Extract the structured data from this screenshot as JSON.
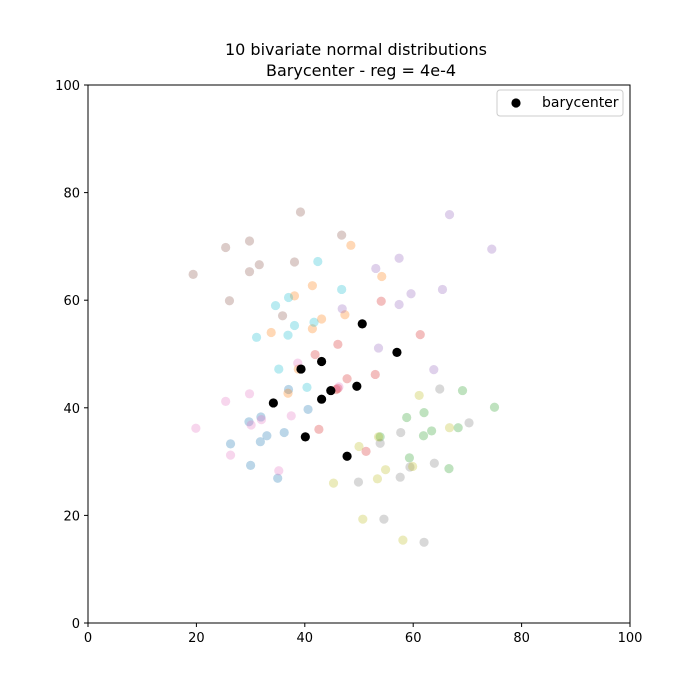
{
  "chart_data": {
    "type": "scatter",
    "title_lines": [
      "10 bivariate normal distributions",
      "Barycenter - reg = 4e-4"
    ],
    "xlabel": "",
    "ylabel": "",
    "xlim": [
      0,
      100
    ],
    "ylim": [
      0,
      100
    ],
    "xticks": [
      0,
      20,
      40,
      60,
      80,
      100
    ],
    "yticks": [
      0,
      20,
      40,
      60,
      80,
      100
    ],
    "grid": false,
    "legend": {
      "position": "top-right",
      "entries": [
        "barycenter"
      ]
    },
    "series": [
      {
        "color": "#1f77b4",
        "points": [
          [
            26.3,
            33.3
          ],
          [
            30.0,
            29.3
          ],
          [
            33.0,
            34.8
          ],
          [
            35.0,
            26.9
          ],
          [
            36.2,
            35.4
          ],
          [
            29.7,
            37.4
          ],
          [
            31.9,
            38.3
          ],
          [
            31.8,
            33.7
          ],
          [
            37.0,
            43.4
          ],
          [
            40.6,
            39.7
          ]
        ]
      },
      {
        "color": "#ff7f0e",
        "points": [
          [
            33.8,
            54.0
          ],
          [
            38.1,
            60.8
          ],
          [
            41.4,
            62.7
          ],
          [
            41.4,
            54.7
          ],
          [
            43.1,
            56.5
          ],
          [
            47.4,
            57.3
          ],
          [
            48.5,
            70.2
          ],
          [
            54.2,
            64.4
          ],
          [
            38.8,
            47.2
          ],
          [
            36.9,
            42.7
          ]
        ]
      },
      {
        "color": "#2ca02c",
        "points": [
          [
            58.8,
            38.2
          ],
          [
            59.3,
            30.7
          ],
          [
            61.9,
            34.8
          ],
          [
            62.0,
            39.1
          ],
          [
            63.4,
            35.7
          ],
          [
            66.6,
            28.7
          ],
          [
            68.3,
            36.3
          ],
          [
            69.1,
            43.2
          ],
          [
            75.0,
            40.1
          ],
          [
            53.9,
            34.6
          ]
        ]
      },
      {
        "color": "#d62728",
        "points": [
          [
            42.6,
            36.0
          ],
          [
            41.9,
            49.9
          ],
          [
            46.1,
            43.6
          ],
          [
            46.1,
            51.8
          ],
          [
            47.8,
            45.4
          ],
          [
            53.0,
            46.2
          ],
          [
            54.1,
            59.8
          ],
          [
            61.3,
            53.6
          ],
          [
            51.3,
            31.9
          ],
          [
            45.8,
            43.4
          ]
        ]
      },
      {
        "color": "#9467bd",
        "points": [
          [
            46.9,
            58.4
          ],
          [
            53.1,
            65.9
          ],
          [
            53.6,
            51.1
          ],
          [
            57.4,
            59.2
          ],
          [
            57.4,
            67.8
          ],
          [
            59.6,
            61.2
          ],
          [
            63.8,
            47.1
          ],
          [
            65.4,
            62.0
          ],
          [
            66.7,
            75.9
          ],
          [
            74.5,
            69.5
          ]
        ]
      },
      {
        "color": "#8c564b",
        "points": [
          [
            19.4,
            64.8
          ],
          [
            25.4,
            69.8
          ],
          [
            26.1,
            59.9
          ],
          [
            29.8,
            71.0
          ],
          [
            29.8,
            65.3
          ],
          [
            31.6,
            66.6
          ],
          [
            35.9,
            57.1
          ],
          [
            38.1,
            67.1
          ],
          [
            39.2,
            76.4
          ],
          [
            46.8,
            72.1
          ]
        ]
      },
      {
        "color": "#e377c2",
        "points": [
          [
            19.9,
            36.2
          ],
          [
            25.4,
            41.2
          ],
          [
            26.3,
            31.2
          ],
          [
            29.8,
            42.6
          ],
          [
            30.1,
            36.8
          ],
          [
            32.0,
            37.8
          ],
          [
            35.2,
            28.3
          ],
          [
            37.5,
            38.5
          ],
          [
            38.7,
            48.3
          ],
          [
            46.3,
            43.9
          ]
        ]
      },
      {
        "color": "#7f7f7f",
        "points": [
          [
            49.9,
            26.2
          ],
          [
            53.9,
            33.4
          ],
          [
            54.6,
            19.3
          ],
          [
            57.6,
            27.1
          ],
          [
            57.7,
            35.4
          ],
          [
            59.4,
            29.0
          ],
          [
            62.0,
            15.0
          ],
          [
            63.9,
            29.7
          ],
          [
            64.9,
            43.5
          ],
          [
            70.3,
            37.2
          ]
        ]
      },
      {
        "color": "#bcbd22",
        "points": [
          [
            45.3,
            26.0
          ],
          [
            50.0,
            32.8
          ],
          [
            50.7,
            19.3
          ],
          [
            53.4,
            26.8
          ],
          [
            53.6,
            34.6
          ],
          [
            54.9,
            28.5
          ],
          [
            58.1,
            15.4
          ],
          [
            59.9,
            29.1
          ],
          [
            61.1,
            42.3
          ],
          [
            66.7,
            36.3
          ]
        ]
      },
      {
        "color": "#17becf",
        "points": [
          [
            31.1,
            53.1
          ],
          [
            34.6,
            59.0
          ],
          [
            35.2,
            47.2
          ],
          [
            36.9,
            53.5
          ],
          [
            37.0,
            60.5
          ],
          [
            38.1,
            55.3
          ],
          [
            40.4,
            43.8
          ],
          [
            41.7,
            55.9
          ],
          [
            42.4,
            67.2
          ],
          [
            46.8,
            62.0
          ]
        ]
      }
    ],
    "barycenter": {
      "name": "barycenter",
      "color": "#000000",
      "points": [
        [
          34.2,
          40.9
        ],
        [
          39.3,
          47.2
        ],
        [
          40.1,
          34.6
        ],
        [
          43.1,
          41.6
        ],
        [
          43.1,
          48.6
        ],
        [
          44.8,
          43.2
        ],
        [
          47.8,
          31.0
        ],
        [
          49.6,
          44.0
        ],
        [
          50.6,
          55.6
        ],
        [
          57.0,
          50.3
        ]
      ]
    }
  }
}
